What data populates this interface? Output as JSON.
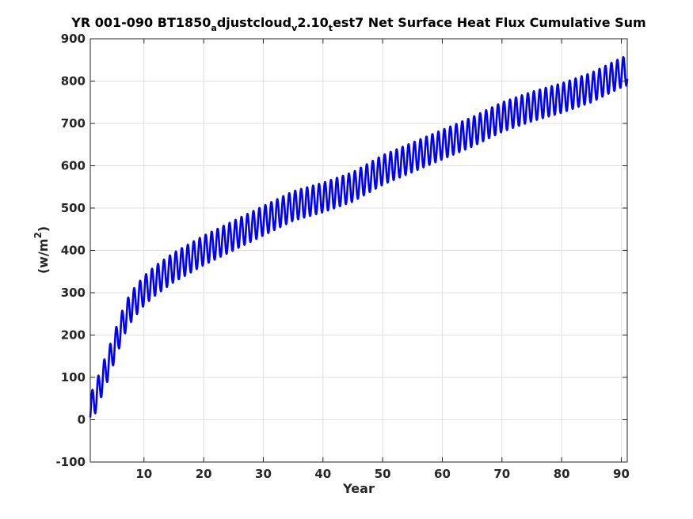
{
  "chart_data": {
    "type": "line",
    "title_parts": [
      {
        "text": "YR 001-090 BT1850",
        "sub": false
      },
      {
        "text": "a",
        "sub": true
      },
      {
        "text": "djustcloud",
        "sub": false
      },
      {
        "text": "v",
        "sub": true
      },
      {
        "text": "2.10",
        "sub": false
      },
      {
        "text": "t",
        "sub": true
      },
      {
        "text": "est7 Net Surface Heat Flux  Cumulative Sum",
        "sub": false
      }
    ],
    "xlabel": "Year",
    "ylabel_parts": {
      "base": "(w/m",
      "sup": "2",
      "end": ")"
    },
    "xlim": [
      1,
      91
    ],
    "ylim": [
      -100,
      900
    ],
    "xticks": [
      10,
      20,
      30,
      40,
      50,
      60,
      70,
      80,
      90
    ],
    "yticks": [
      -100,
      0,
      100,
      200,
      300,
      400,
      500,
      600,
      700,
      800,
      900
    ],
    "grid": true,
    "series": [
      {
        "color": "#0000ff",
        "description": "monthly cumulative sum with annual cycle of ~+/-35 w/m2 around the trend",
        "trend_x": [
          1,
          2,
          3,
          4,
          5,
          6,
          7,
          8,
          10,
          12,
          15,
          20,
          25,
          30,
          35,
          40,
          45,
          50,
          55,
          60,
          65,
          70,
          75,
          80,
          85,
          90,
          91
        ],
        "trend_y": [
          25,
          55,
          95,
          130,
          170,
          210,
          245,
          270,
          305,
          330,
          360,
          400,
          435,
          470,
          505,
          525,
          550,
          590,
          620,
          650,
          680,
          715,
          740,
          760,
          785,
          820,
          825
        ],
        "seasonal_amplitude": 35
      }
    ]
  }
}
